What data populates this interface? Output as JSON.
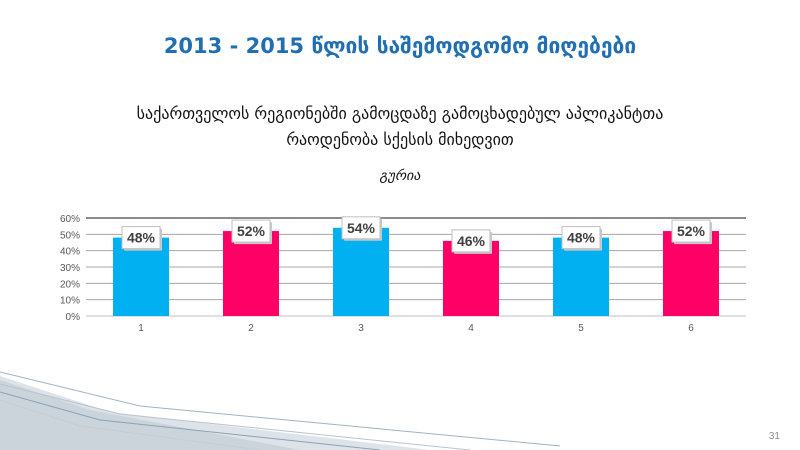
{
  "slide": {
    "title": "2013 - 2015 წლის საშემოდგომო მიღებები",
    "subtitle_line1": "საქართველოს რეგიონებში გამოცდაზე გამოცხადებულ აპლიკანტთა",
    "subtitle_line2": "რაოდენობა სქესის მიხედვით",
    "region": "გურია",
    "page_number": "31"
  },
  "colors": {
    "title": "#1f6fb2",
    "cyan_bar": "#00b0f0",
    "pink_bar": "#ff0066",
    "grid": "#9a9a9a"
  },
  "chart_data": {
    "type": "bar",
    "categories": [
      "1",
      "2",
      "3",
      "4",
      "5",
      "6"
    ],
    "values": [
      48,
      52,
      54,
      46,
      48,
      52
    ],
    "data_labels": [
      "48%",
      "52%",
      "54%",
      "46%",
      "48%",
      "52%"
    ],
    "bar_colors": [
      "#00b0f0",
      "#ff0066",
      "#00b0f0",
      "#ff0066",
      "#00b0f0",
      "#ff0066"
    ],
    "y_ticks": [
      "0%",
      "10%",
      "20%",
      "30%",
      "40%",
      "50%",
      "60%"
    ],
    "ylim": [
      0,
      60
    ],
    "grid": true,
    "legend": false
  }
}
